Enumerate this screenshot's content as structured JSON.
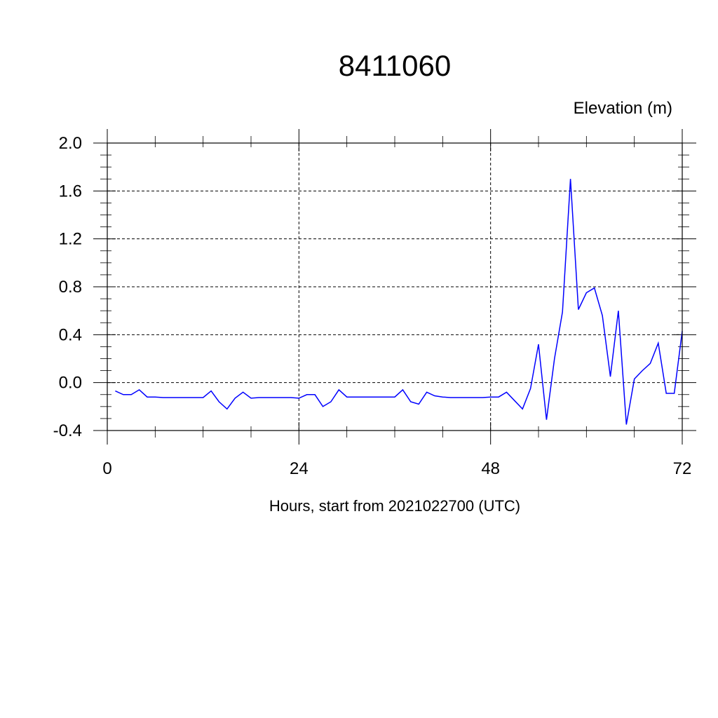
{
  "chart_data": {
    "type": "line",
    "title": "8411060",
    "ylabel": "Elevation (m)",
    "xlabel": "Hours, start from 2021022700 (UTC)",
    "xlim": [
      0,
      72
    ],
    "ylim": [
      -0.4,
      2.0
    ],
    "x_ticks": [
      0,
      24,
      48,
      72
    ],
    "x_tick_labels": [
      "0",
      "24",
      "48",
      "72"
    ],
    "y_ticks": [
      -0.4,
      0.0,
      0.4,
      0.8,
      1.2,
      1.6,
      2.0
    ],
    "y_tick_labels": [
      "-0.4",
      "0.0",
      "0.4",
      "0.8",
      "1.2",
      "1.6",
      "2.0"
    ],
    "grid": true,
    "series": [
      {
        "color": "#0000ff",
        "x": [
          1,
          2,
          3,
          4,
          5,
          6,
          7,
          8,
          9,
          10,
          11,
          12,
          13,
          14,
          15,
          16,
          17,
          18,
          19,
          20,
          21,
          22,
          23,
          24,
          25,
          26,
          27,
          28,
          29,
          30,
          31,
          32,
          33,
          34,
          35,
          36,
          37,
          38,
          39,
          40,
          41,
          42,
          43,
          44,
          45,
          46,
          47,
          48,
          49,
          50,
          51,
          52,
          53,
          54,
          55,
          56,
          57,
          58,
          59,
          60,
          61,
          62,
          63,
          64,
          65,
          66,
          67,
          68,
          69,
          70,
          71,
          72
        ],
        "y": [
          -0.07,
          -0.1,
          -0.1,
          -0.06,
          -0.12,
          -0.12,
          -0.125,
          -0.125,
          -0.125,
          -0.125,
          -0.125,
          -0.125,
          -0.07,
          -0.16,
          -0.22,
          -0.13,
          -0.08,
          -0.13,
          -0.125,
          -0.125,
          -0.125,
          -0.125,
          -0.125,
          -0.13,
          -0.1,
          -0.1,
          -0.2,
          -0.16,
          -0.06,
          -0.12,
          -0.12,
          -0.12,
          -0.12,
          -0.12,
          -0.12,
          -0.12,
          -0.06,
          -0.16,
          -0.18,
          -0.08,
          -0.11,
          -0.12,
          -0.125,
          -0.125,
          -0.125,
          -0.125,
          -0.125,
          -0.12,
          -0.12,
          -0.08,
          -0.15,
          -0.22,
          -0.05,
          0.32,
          -0.31,
          0.2,
          0.59,
          1.7,
          0.61,
          0.75,
          0.79,
          0.56,
          0.05,
          0.6,
          -0.35,
          0.03,
          0.1,
          0.16,
          0.33,
          -0.09,
          -0.09,
          0.43
        ]
      }
    ]
  }
}
